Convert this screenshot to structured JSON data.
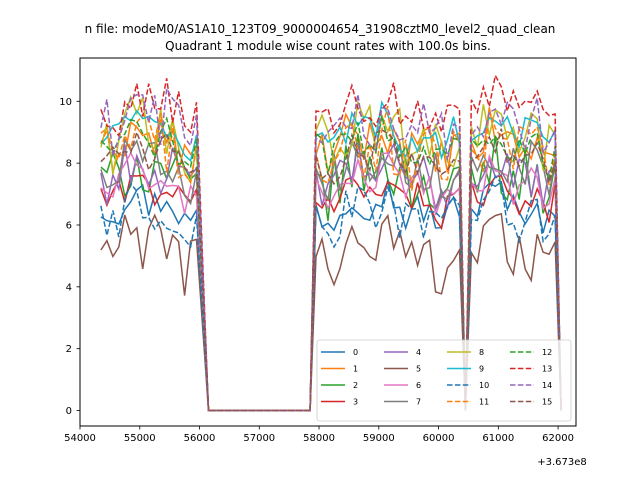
{
  "chart_data": {
    "type": "line",
    "suptitle": "n file: modeM0/AS1A10_123T09_9000004654_31908cztM0_level2_quad_clean",
    "title": "Quadrant 1 module wise count rates with 100.0s bins.",
    "xlabel": "",
    "ylabel": "",
    "x_offset_label": "+3.673e8",
    "xlim": [
      54000,
      62300
    ],
    "ylim": [
      -0.5,
      11.4
    ],
    "x_ticks": [
      54000,
      55000,
      56000,
      57000,
      58000,
      59000,
      60000,
      61000,
      62000
    ],
    "x_tick_labels": [
      "54000",
      "55000",
      "56000",
      "57000",
      "58000",
      "59000",
      "60000",
      "61000",
      "62000"
    ],
    "y_ticks": [
      0,
      2,
      4,
      6,
      8,
      10
    ],
    "y_tick_labels": [
      "0",
      "2",
      "4",
      "6",
      "8",
      "10"
    ],
    "legend": {
      "placement": "lower-right",
      "columns": 4
    },
    "segments": [
      {
        "start": 54350,
        "end": 55950,
        "step": 100
      },
      {
        "start": 57950,
        "end": 60350,
        "step": 100
      },
      {
        "start": 60550,
        "end": 61950,
        "step": 100
      }
    ],
    "gaps": [
      {
        "from": 55950,
        "down": 56150,
        "zero_until": 57850,
        "up": 57950
      },
      {
        "from": 60350,
        "down": 60450,
        "zero_until": 60450,
        "up": 60550
      },
      {
        "from": 61950,
        "down": 62050,
        "zero_until": 62050,
        "up": null
      }
    ],
    "series": [
      {
        "name": "0",
        "color": "#1f77b4",
        "dash": "solid",
        "mean": 6.6
      },
      {
        "name": "1",
        "color": "#ff7f0e",
        "dash": "solid",
        "mean": 8.6
      },
      {
        "name": "2",
        "color": "#2ca02c",
        "dash": "solid",
        "mean": 7.6
      },
      {
        "name": "3",
        "color": "#d62728",
        "dash": "solid",
        "mean": 7.0
      },
      {
        "name": "4",
        "color": "#9467bd",
        "dash": "solid",
        "mean": 7.6
      },
      {
        "name": "5",
        "color": "#8c564b",
        "dash": "solid",
        "mean": 5.2
      },
      {
        "name": "6",
        "color": "#e377c2",
        "dash": "solid",
        "mean": 7.3
      },
      {
        "name": "7",
        "color": "#7f7f7f",
        "dash": "solid",
        "mean": 8.0
      },
      {
        "name": "8",
        "color": "#bcbd22",
        "dash": "solid",
        "mean": 8.8
      },
      {
        "name": "9",
        "color": "#17becf",
        "dash": "solid",
        "mean": 9.0
      },
      {
        "name": "10",
        "color": "#1f77b4",
        "dash": "dashed",
        "mean": 6.3
      },
      {
        "name": "11",
        "color": "#ff7f0e",
        "dash": "dashed",
        "mean": 8.4
      },
      {
        "name": "12",
        "color": "#2ca02c",
        "dash": "dashed",
        "mean": 8.6
      },
      {
        "name": "13",
        "color": "#d62728",
        "dash": "dashed",
        "mean": 9.7
      },
      {
        "name": "14",
        "color": "#9467bd",
        "dash": "dashed",
        "mean": 9.2
      },
      {
        "name": "15",
        "color": "#8c564b",
        "dash": "dashed",
        "mean": 8.2
      }
    ]
  }
}
